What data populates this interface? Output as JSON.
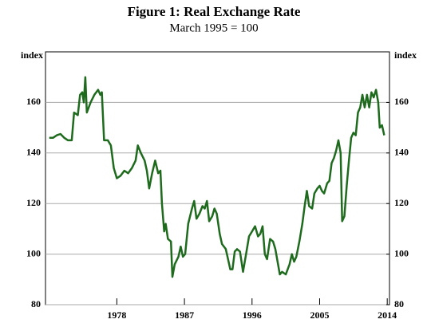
{
  "chart_data": {
    "type": "line",
    "title": "Figure 1: Real Exchange Rate",
    "subtitle": "March 1995 = 100",
    "y_label": "index",
    "y2_label": "index",
    "xlim": [
      1968.5,
      2014.3
    ],
    "xticks": [
      1978,
      1987,
      1996,
      2005,
      2014
    ],
    "ylim": [
      80,
      180
    ],
    "yticks": [
      80,
      100,
      120,
      140,
      160
    ],
    "y2lim": [
      80,
      180
    ],
    "y2ticks": [
      80,
      100,
      120,
      140,
      160
    ],
    "grid": true,
    "series": [
      {
        "name": "Real exchange rate",
        "color": "#1e6b1e",
        "x": [
          1969.0,
          1969.5,
          1970,
          1970.5,
          1971,
          1971.5,
          1972,
          1972.3,
          1972.8,
          1973.1,
          1973.4,
          1973.6,
          1973.8,
          1974.0,
          1974.5,
          1975,
          1975.5,
          1975.8,
          1976.0,
          1976.3,
          1976.8,
          1977.2,
          1977.6,
          1978,
          1978.5,
          1979,
          1979.5,
          1980,
          1980.5,
          1980.8,
          1981.2,
          1981.7,
          1982,
          1982.3,
          1982.7,
          1983.1,
          1983.5,
          1983.8,
          1984,
          1984.3,
          1984.5,
          1984.8,
          1985.2,
          1985.4,
          1985.7,
          1986.2,
          1986.5,
          1986.8,
          1987.1,
          1987.5,
          1988,
          1988.3,
          1988.6,
          1989,
          1989.4,
          1989.7,
          1990,
          1990.3,
          1990.7,
          1991,
          1991.3,
          1991.7,
          1992,
          1992.5,
          1992.8,
          1993.1,
          1993.4,
          1993.7,
          1994,
          1994.4,
          1994.8,
          1995.2,
          1995.6,
          1996,
          1996.4,
          1996.8,
          1997.1,
          1997.4,
          1997.7,
          1998,
          1998.4,
          1998.8,
          1999.1,
          1999.4,
          1999.7,
          2000,
          2000.5,
          2001,
          2001.3,
          2001.6,
          2001.9,
          2002.3,
          2002.7,
          2003,
          2003.3,
          2003.6,
          2004,
          2004.3,
          2004.7,
          2005,
          2005.3,
          2005.6,
          2006,
          2006.3,
          2006.6,
          2006.9,
          2007.2,
          2007.5,
          2007.8,
          2008.0,
          2008.3,
          2008.6,
          2008.9,
          2009.2,
          2009.5,
          2009.8,
          2010.1,
          2010.4,
          2010.7,
          2011,
          2011.3,
          2011.6,
          2011.9,
          2012.2,
          2012.5,
          2012.8,
          2013,
          2013.3,
          2013.6
        ],
        "values": [
          146,
          146,
          147,
          147.5,
          146,
          145,
          145,
          156,
          155,
          163,
          164,
          160,
          170,
          156,
          160,
          163,
          165,
          163,
          164,
          145,
          145,
          143,
          134,
          130,
          131,
          133,
          132,
          134,
          137,
          143,
          140,
          137,
          133,
          126,
          132,
          137,
          132,
          133,
          120,
          109,
          112,
          106,
          105,
          91,
          96,
          99,
          103,
          99,
          100,
          112,
          118,
          121,
          114,
          116,
          119,
          118,
          121,
          113,
          115,
          118,
          116,
          108,
          104,
          102,
          98,
          94,
          94,
          101,
          102,
          101,
          93,
          100,
          107,
          109,
          111,
          107,
          108,
          111,
          100,
          98,
          106,
          105,
          102,
          97,
          92,
          93,
          92,
          96,
          100,
          97,
          99,
          105,
          112,
          119,
          125,
          119,
          118,
          124,
          126,
          127,
          125,
          124,
          128,
          129,
          136,
          138,
          141,
          145,
          140,
          113,
          115,
          127,
          137,
          146,
          148,
          147,
          156,
          158,
          163,
          158,
          163,
          158,
          164,
          162,
          165,
          160,
          150,
          151,
          147
        ]
      }
    ]
  }
}
